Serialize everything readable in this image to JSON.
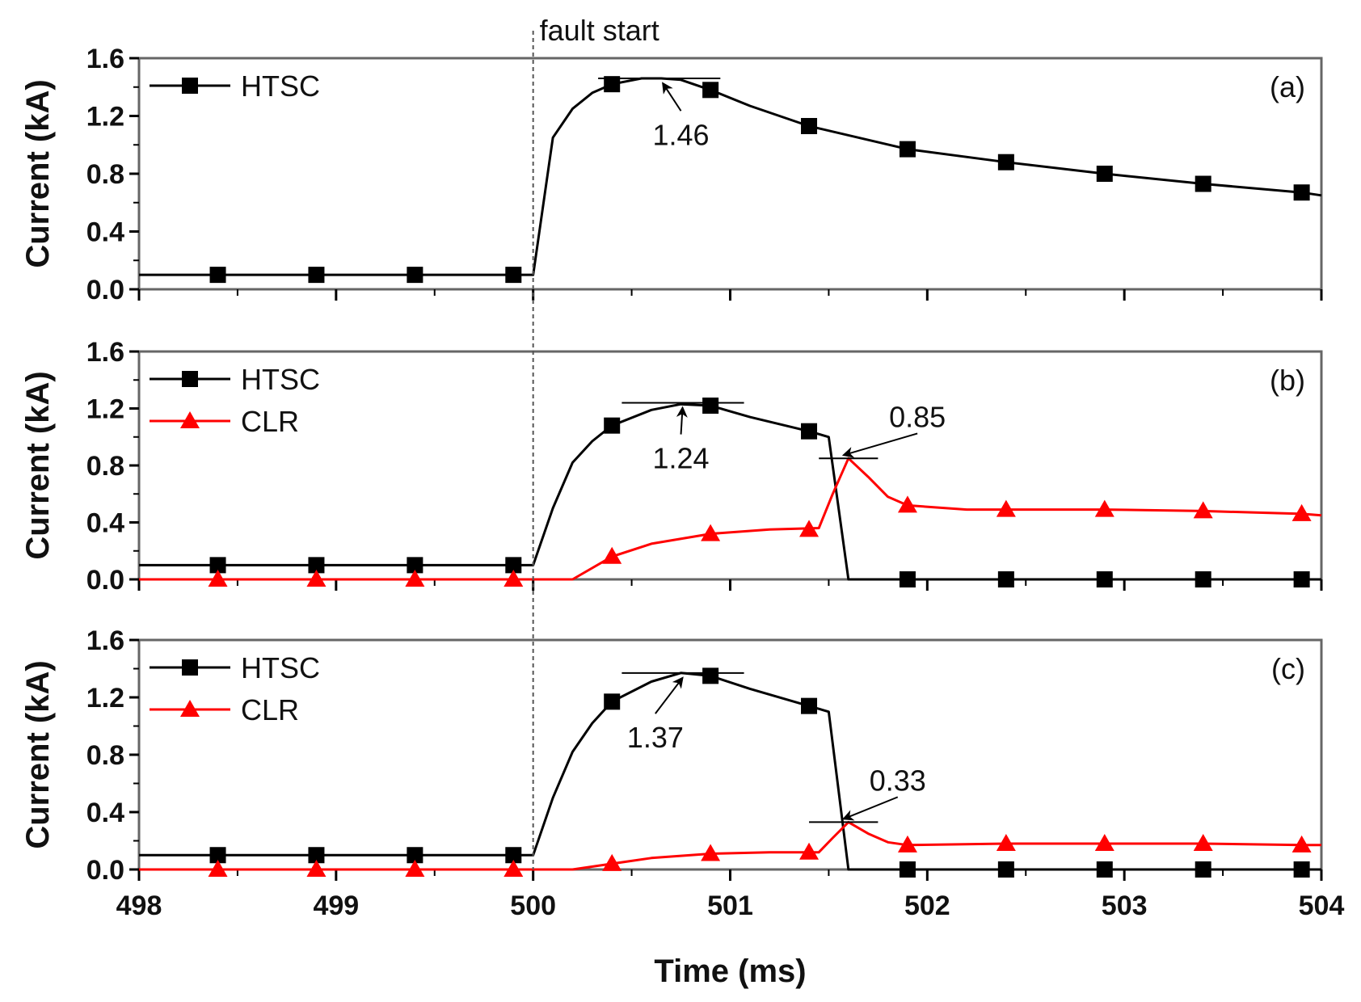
{
  "chart_data": {
    "type": "line",
    "x_label": "Time (ms)",
    "y_label": "Current (kA)",
    "x_range": [
      498,
      504
    ],
    "x_ticks": [
      "498",
      "499",
      "500",
      "501",
      "502",
      "503",
      "504"
    ],
    "y_range": [
      0,
      1.6
    ],
    "y_ticks": [
      "0.0",
      "0.4",
      "0.8",
      "1.2",
      "1.6"
    ],
    "fault_marker": {
      "x": 500,
      "label": "fault start"
    },
    "colors": {
      "HTSC": "#000000",
      "CLR": "#ff0000"
    },
    "panels": [
      {
        "label": "(a)",
        "series": [
          {
            "name": "HTSC",
            "marker": "square",
            "x": [
              498,
              499.9,
              500.0,
              500.1,
              500.2,
              500.3,
              500.4,
              500.55,
              500.65,
              500.75,
              500.9,
              501.1,
              501.4,
              501.9,
              502.4,
              502.9,
              503.4,
              503.9,
              504
            ],
            "y": [
              0.1,
              0.1,
              0.1,
              1.05,
              1.25,
              1.36,
              1.42,
              1.46,
              1.46,
              1.45,
              1.38,
              1.27,
              1.13,
              0.97,
              0.88,
              0.8,
              0.73,
              0.67,
              0.65
            ],
            "markers_x": [
              498.4,
              498.9,
              499.4,
              499.9,
              500.4,
              500.9,
              501.4,
              501.9,
              502.4,
              502.9,
              503.4,
              503.9
            ],
            "markers_y": [
              0.1,
              0.1,
              0.1,
              0.1,
              1.42,
              1.38,
              1.13,
              0.97,
              0.88,
              0.8,
              0.73,
              0.67
            ]
          }
        ],
        "peak": {
          "x": 500.65,
          "y": 1.46,
          "text": "1.46",
          "text_x": 500.75,
          "text_y": 1.0,
          "line_x": [
            500.33,
            500.95
          ]
        }
      },
      {
        "label": "(b)",
        "series": [
          {
            "name": "HTSC",
            "marker": "square",
            "x": [
              498,
              499.9,
              500.0,
              500.1,
              500.2,
              500.3,
              500.4,
              500.6,
              500.75,
              500.9,
              501.1,
              501.4,
              501.5,
              501.6,
              504
            ],
            "y": [
              0.1,
              0.1,
              0.1,
              0.5,
              0.82,
              0.97,
              1.08,
              1.19,
              1.23,
              1.22,
              1.14,
              1.04,
              1.0,
              0.0,
              0.0
            ],
            "markers_x": [
              498.4,
              498.9,
              499.4,
              499.9,
              500.4,
              500.9,
              501.4,
              501.9,
              502.4,
              502.9,
              503.4,
              503.9
            ],
            "markers_y": [
              0.1,
              0.1,
              0.1,
              0.1,
              1.08,
              1.22,
              1.04,
              0.0,
              0.0,
              0.0,
              0.0,
              0.0
            ]
          },
          {
            "name": "CLR",
            "marker": "triangle",
            "x": [
              498,
              500.2,
              500.4,
              500.6,
              500.9,
              501.2,
              501.45,
              501.52,
              501.6,
              501.7,
              501.8,
              501.9,
              502.2,
              502.9,
              503.4,
              503.9,
              504
            ],
            "y": [
              0.0,
              0.0,
              0.16,
              0.25,
              0.32,
              0.35,
              0.36,
              0.6,
              0.85,
              0.72,
              0.58,
              0.52,
              0.49,
              0.49,
              0.48,
              0.46,
              0.45
            ],
            "markers_x": [
              498.4,
              498.9,
              499.4,
              499.9,
              500.4,
              500.9,
              501.4,
              501.9,
              502.4,
              502.9,
              503.4,
              503.9
            ],
            "markers_y": [
              0.0,
              0.0,
              0.0,
              0.0,
              0.16,
              0.32,
              0.35,
              0.52,
              0.49,
              0.49,
              0.48,
              0.46
            ]
          }
        ],
        "peaks": [
          {
            "x": 500.75,
            "y": 1.24,
            "text": "1.24",
            "text_x": 500.75,
            "text_y": 0.78,
            "line_x": [
              500.45,
              501.07
            ]
          },
          {
            "x": 501.6,
            "y": 0.85,
            "text": "0.85",
            "text_x": 501.95,
            "text_y": 1.07,
            "line_x": [
              501.45,
              501.75
            ]
          }
        ]
      },
      {
        "label": "(c)",
        "series": [
          {
            "name": "HTSC",
            "marker": "square",
            "x": [
              498,
              499.9,
              500.0,
              500.1,
              500.2,
              500.3,
              500.4,
              500.6,
              500.75,
              500.9,
              501.1,
              501.4,
              501.5,
              501.6,
              504
            ],
            "y": [
              0.1,
              0.1,
              0.1,
              0.5,
              0.82,
              1.02,
              1.17,
              1.31,
              1.37,
              1.35,
              1.26,
              1.14,
              1.1,
              0.0,
              0.0
            ],
            "markers_x": [
              498.4,
              498.9,
              499.4,
              499.9,
              500.4,
              500.9,
              501.4,
              501.9,
              502.4,
              502.9,
              503.4,
              503.9
            ],
            "markers_y": [
              0.1,
              0.1,
              0.1,
              0.1,
              1.17,
              1.35,
              1.14,
              0.0,
              0.0,
              0.0,
              0.0,
              0.0
            ]
          },
          {
            "name": "CLR",
            "marker": "triangle",
            "x": [
              498,
              500.2,
              500.4,
              500.6,
              500.9,
              501.2,
              501.45,
              501.52,
              501.6,
              501.7,
              501.8,
              501.9,
              502.4,
              502.9,
              503.4,
              503.9,
              504
            ],
            "y": [
              0.0,
              0.0,
              0.04,
              0.08,
              0.11,
              0.12,
              0.12,
              0.22,
              0.33,
              0.25,
              0.19,
              0.17,
              0.18,
              0.18,
              0.18,
              0.17,
              0.17
            ],
            "markers_x": [
              498.4,
              498.9,
              499.4,
              499.9,
              500.4,
              500.9,
              501.4,
              501.9,
              502.4,
              502.9,
              503.4,
              503.9
            ],
            "markers_y": [
              0.0,
              0.0,
              0.0,
              0.0,
              0.04,
              0.11,
              0.12,
              0.17,
              0.18,
              0.18,
              0.18,
              0.17
            ]
          }
        ],
        "peaks": [
          {
            "x": 500.75,
            "y": 1.37,
            "text": "1.37",
            "text_x": 500.62,
            "text_y": 0.85,
            "line_x": [
              500.45,
              501.07
            ]
          },
          {
            "x": 501.6,
            "y": 0.33,
            "text": "0.33",
            "text_x": 501.85,
            "text_y": 0.55,
            "line_x": [
              501.4,
              501.75
            ]
          }
        ]
      }
    ]
  }
}
